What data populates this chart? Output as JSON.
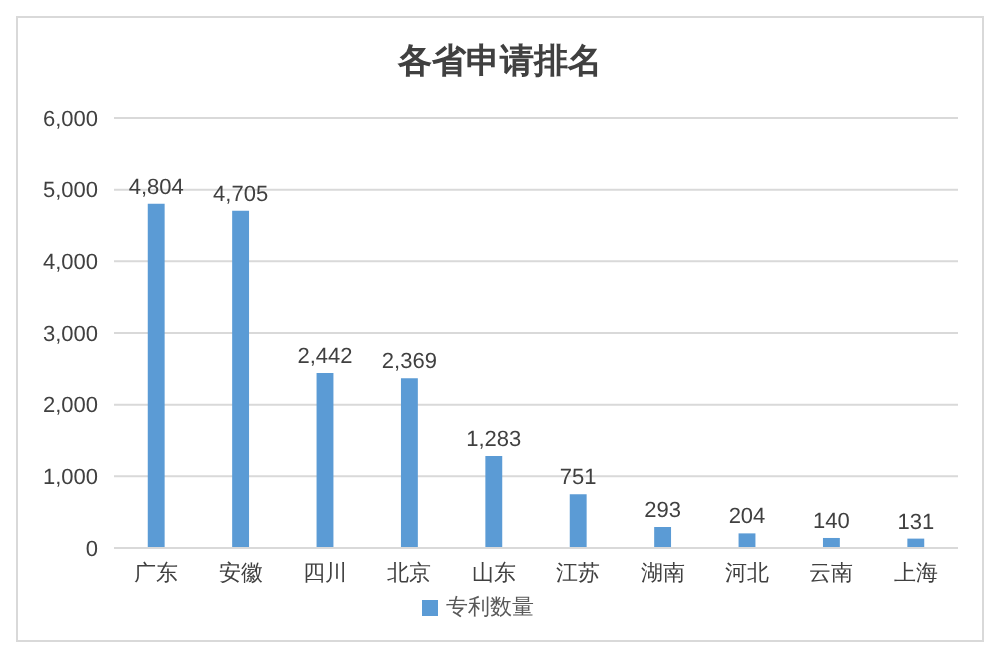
{
  "chart_data": {
    "type": "bar",
    "title": "各省申请排名",
    "categories": [
      "广东",
      "安徽",
      "四川",
      "北京",
      "山东",
      "江苏",
      "湖南",
      "河北",
      "云南",
      "上海"
    ],
    "series": [
      {
        "name": "专利数量",
        "color": "#5b9bd5",
        "values": [
          4804,
          4705,
          2442,
          2369,
          1283,
          751,
          293,
          204,
          140,
          131
        ],
        "value_labels": [
          "4,804",
          "4,705",
          "2,442",
          "2,369",
          "1,283",
          "751",
          "293",
          "204",
          "140",
          "131"
        ]
      }
    ],
    "ylim": [
      0,
      6000
    ],
    "yticks": [
      {
        "value": 0,
        "label": "0"
      },
      {
        "value": 1000,
        "label": "1,000"
      },
      {
        "value": 2000,
        "label": "2,000"
      },
      {
        "value": 3000,
        "label": "3,000"
      },
      {
        "value": 4000,
        "label": "4,000"
      },
      {
        "value": 5000,
        "label": "5,000"
      },
      {
        "value": 6000,
        "label": "6,000"
      }
    ],
    "grid": "y",
    "legend": "bottom"
  }
}
